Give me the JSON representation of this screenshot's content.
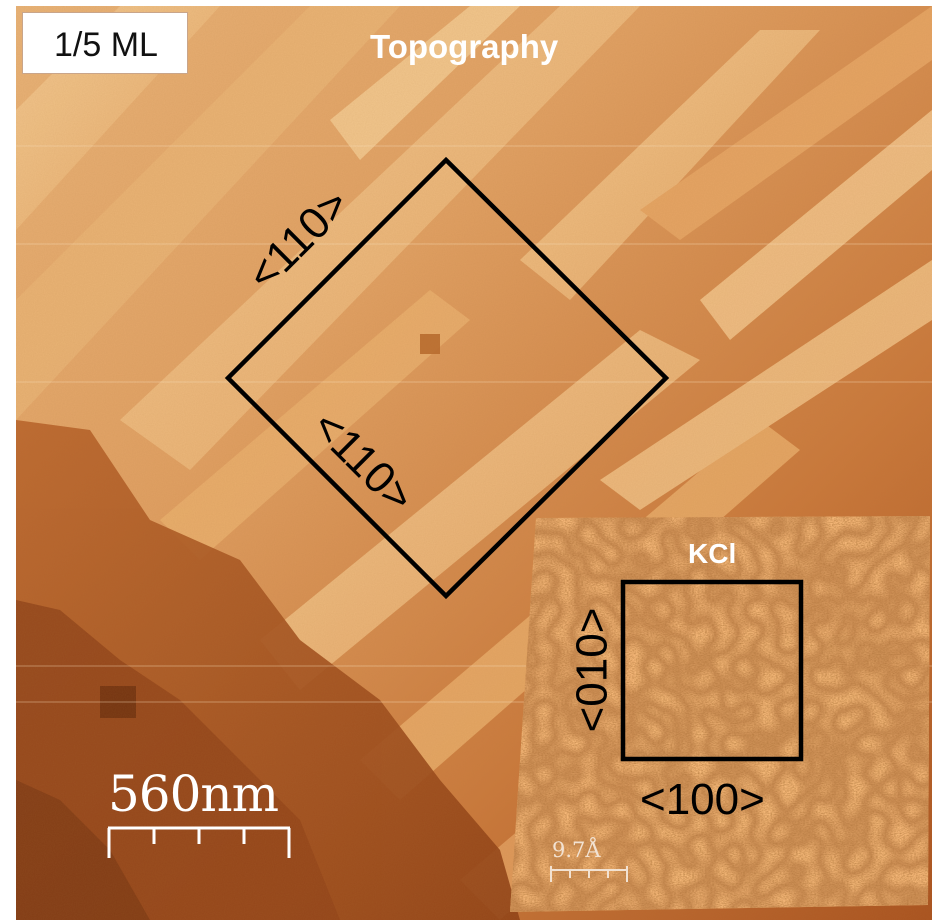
{
  "labels": {
    "coverage": "1/5 ML",
    "topography_title": "Topography",
    "inset_title": "KCl",
    "scale_main": "560nm",
    "scale_inset": "9.7Å",
    "direction_110_upper": "<110>",
    "direction_110_lower": "<110>",
    "direction_100": "<100>",
    "direction_010": "<010>"
  },
  "colors": {
    "surface_light": "#f3c38a",
    "surface_mid": "#d98a45",
    "surface_dark": "#8a3d12",
    "outline": "#000000",
    "inset_base": "#d9954f"
  }
}
